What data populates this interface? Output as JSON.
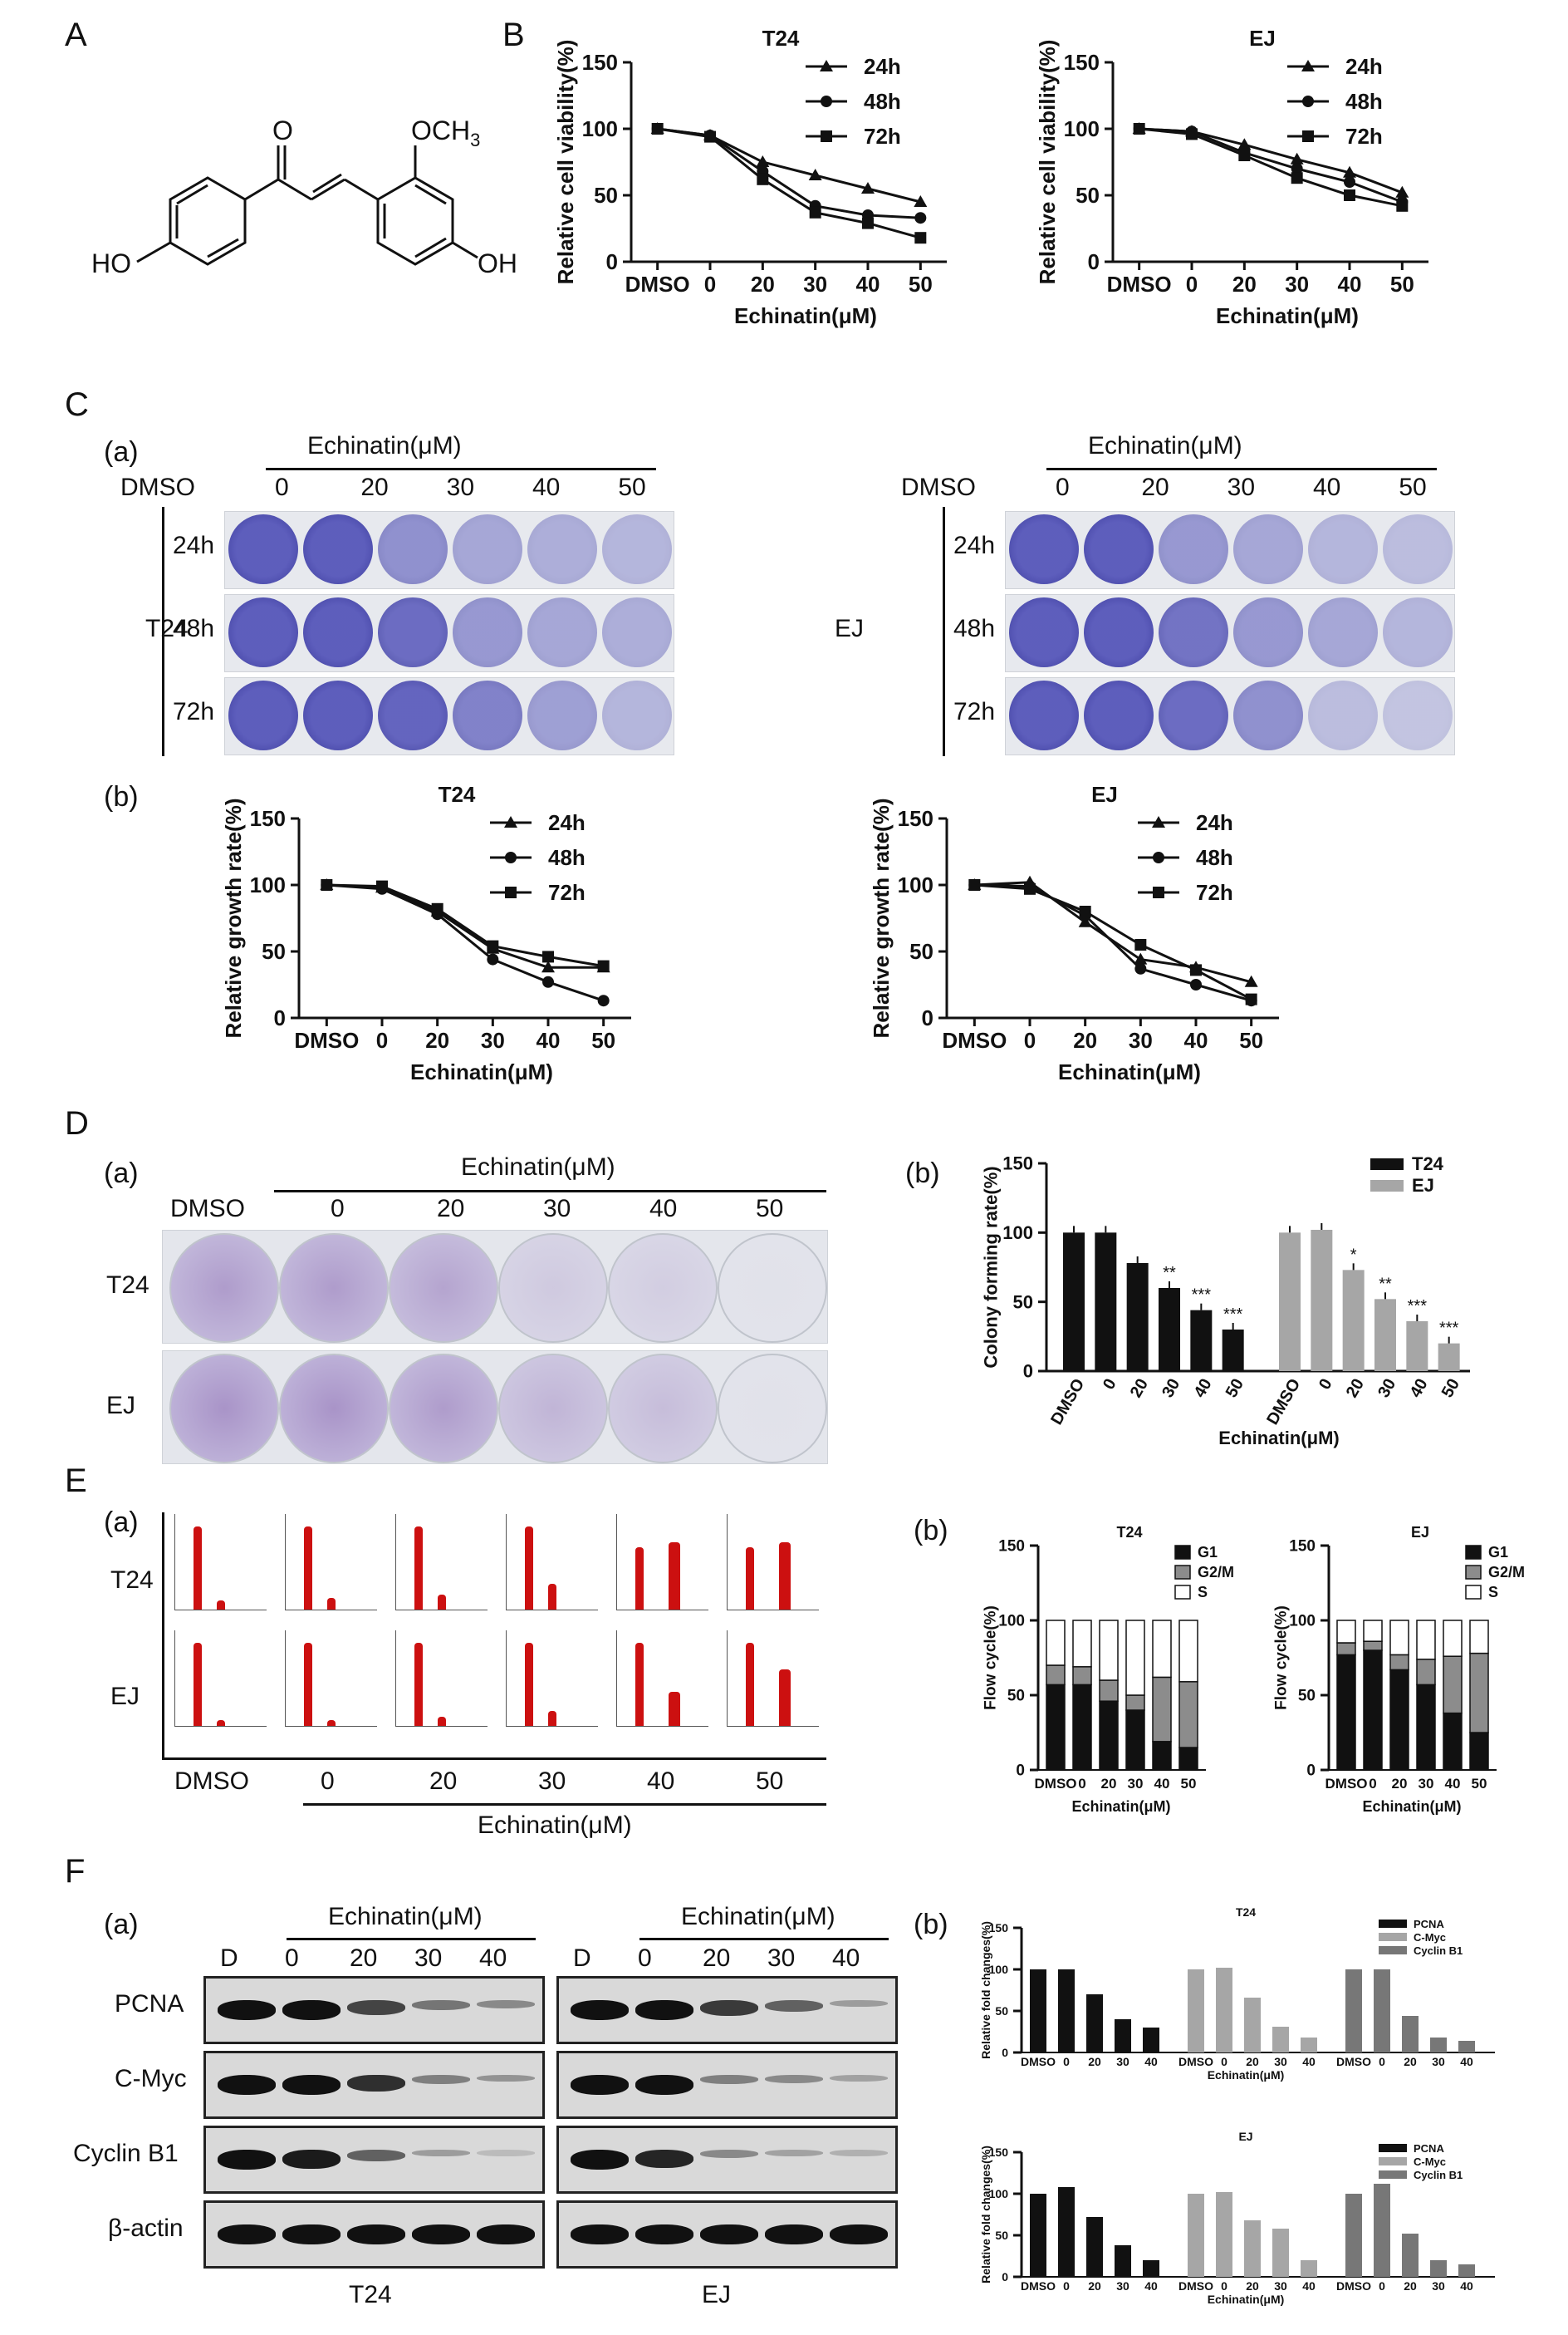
{
  "panel_labels": {
    "A": "A",
    "B": "B",
    "C": "C",
    "D": "D",
    "E": "E",
    "F": "F"
  },
  "sub_labels": {
    "a": "(a)",
    "b": "(b)"
  },
  "structure": {
    "o": "O",
    "ome": "OCH",
    "ome_sub": "3",
    "ho": "HO",
    "oh": "OH"
  },
  "common": {
    "echinatin_header": "Echinatin(μM)",
    "dmso": "DMSO",
    "doses": [
      "0",
      "20",
      "30",
      "40",
      "50"
    ],
    "times": [
      "24h",
      "48h",
      "72h"
    ],
    "cells": [
      "T24",
      "EJ"
    ]
  },
  "blot": {
    "header": "Echinatin(μM)",
    "lanes": [
      "D",
      "0",
      "20",
      "30",
      "40"
    ],
    "proteins": [
      "PCNA",
      "C-Myc",
      "Cyclin B1",
      "β-actin"
    ],
    "footers": [
      "T24",
      "EJ"
    ],
    "intensity": {
      "T24": [
        [
          1,
          1,
          0.75,
          0.5,
          0.4
        ],
        [
          1,
          1,
          0.85,
          0.45,
          0.35
        ],
        [
          1,
          0.95,
          0.6,
          0.3,
          0.12
        ],
        [
          1,
          1,
          1,
          1,
          1
        ]
      ],
      "EJ": [
        [
          1,
          1,
          0.8,
          0.6,
          0.3
        ],
        [
          1,
          1,
          0.45,
          0.4,
          0.28
        ],
        [
          1,
          0.9,
          0.4,
          0.28,
          0.2
        ],
        [
          1,
          1,
          1,
          1,
          1
        ]
      ]
    }
  },
  "chart_data": [
    {
      "type": "line",
      "title": "T24",
      "xlabel": "Echinatin(μM)",
      "ylabel": "Relative cell viability(%)",
      "categories": [
        "DMSO",
        "0",
        "20",
        "30",
        "40",
        "50"
      ],
      "ylim": [
        0,
        150
      ],
      "yticks": [
        "0",
        "50",
        "100",
        "150"
      ],
      "legend": "top-right",
      "series": [
        {
          "name": "24h",
          "marker": "triangle",
          "values": [
            100,
            95,
            75,
            65,
            55,
            45
          ]
        },
        {
          "name": "48h",
          "marker": "circle",
          "values": [
            100,
            95,
            68,
            42,
            35,
            33
          ]
        },
        {
          "name": "72h",
          "marker": "square",
          "values": [
            100,
            94,
            62,
            37,
            29,
            18
          ]
        }
      ]
    },
    {
      "type": "line",
      "title": "EJ",
      "xlabel": "Echinatin(μM)",
      "ylabel": "Relative cell viability(%)",
      "categories": [
        "DMSO",
        "0",
        "20",
        "30",
        "40",
        "50"
      ],
      "ylim": [
        0,
        150
      ],
      "yticks": [
        "0",
        "50",
        "100",
        "150"
      ],
      "legend": "top-right",
      "series": [
        {
          "name": "24h",
          "marker": "triangle",
          "values": [
            100,
            98,
            88,
            77,
            67,
            52
          ]
        },
        {
          "name": "48h",
          "marker": "circle",
          "values": [
            100,
            98,
            82,
            70,
            60,
            45
          ]
        },
        {
          "name": "72h",
          "marker": "square",
          "values": [
            100,
            96,
            80,
            63,
            50,
            42
          ]
        }
      ]
    },
    {
      "type": "line",
      "title": "T24",
      "xlabel": "Echinatin(μM)",
      "ylabel": "Relative growth rate(%)",
      "categories": [
        "DMSO",
        "0",
        "20",
        "30",
        "40",
        "50"
      ],
      "ylim": [
        0,
        150
      ],
      "yticks": [
        "0",
        "50",
        "100",
        "150"
      ],
      "legend": "top-right",
      "series": [
        {
          "name": "24h",
          "marker": "triangle",
          "values": [
            100,
            98,
            80,
            52,
            38,
            38
          ]
        },
        {
          "name": "48h",
          "marker": "circle",
          "values": [
            100,
            97,
            78,
            44,
            27,
            13
          ]
        },
        {
          "name": "72h",
          "marker": "square",
          "values": [
            100,
            99,
            82,
            54,
            46,
            39
          ]
        }
      ]
    },
    {
      "type": "line",
      "title": "EJ",
      "xlabel": "Echinatin(μM)",
      "ylabel": "Relative growth rate(%)",
      "categories": [
        "DMSO",
        "0",
        "20",
        "30",
        "40",
        "50"
      ],
      "ylim": [
        0,
        150
      ],
      "yticks": [
        "0",
        "50",
        "100",
        "150"
      ],
      "legend": "top-right",
      "series": [
        {
          "name": "24h",
          "marker": "triangle",
          "values": [
            100,
            102,
            72,
            44,
            38,
            27
          ]
        },
        {
          "name": "48h",
          "marker": "circle",
          "values": [
            100,
            99,
            77,
            37,
            25,
            13
          ]
        },
        {
          "name": "72h",
          "marker": "square",
          "values": [
            100,
            97,
            80,
            55,
            36,
            14
          ]
        }
      ]
    },
    {
      "type": "bar",
      "ylabel": "Colony forming rate(%)",
      "xlabel": "Echinatin(μM)",
      "categories": [
        "DMSO",
        "0",
        "20",
        "30",
        "40",
        "50"
      ],
      "ylim": [
        0,
        150
      ],
      "yticks": [
        "0",
        "50",
        "100",
        "150"
      ],
      "legend": "top-right",
      "series": [
        {
          "name": "T24",
          "color": "#111111",
          "values": [
            100,
            100,
            78,
            60,
            44,
            30
          ],
          "sig": [
            "",
            "",
            "",
            "**",
            "***",
            "***"
          ]
        },
        {
          "name": "EJ",
          "color": "#a6a6a6",
          "values": [
            100,
            102,
            73,
            52,
            36,
            20
          ],
          "sig": [
            "",
            "",
            "*",
            "**",
            "***",
            "***"
          ]
        }
      ]
    },
    {
      "type": "bar",
      "stacked": true,
      "title": "T24",
      "ylabel": "Flow cycle(%)",
      "xlabel": "Echinatin(μM)",
      "categories": [
        "DMSO",
        "0",
        "20",
        "30",
        "40",
        "50"
      ],
      "ylim": [
        0,
        150
      ],
      "yticks": [
        "0",
        "50",
        "100",
        "150"
      ],
      "legend": "top-right",
      "series": [
        {
          "name": "G1",
          "color": "#111111",
          "values": [
            57,
            57,
            46,
            40,
            19,
            15
          ]
        },
        {
          "name": "G2/M",
          "color": "#8c8c8c",
          "values": [
            13,
            12,
            14,
            10,
            43,
            44
          ]
        },
        {
          "name": "S",
          "color": "#ffffff",
          "values": [
            30,
            31,
            40,
            50,
            38,
            41
          ]
        }
      ]
    },
    {
      "type": "bar",
      "stacked": true,
      "title": "EJ",
      "ylabel": "Flow cycle(%)",
      "xlabel": "Echinatin(μM)",
      "categories": [
        "DMSO",
        "0",
        "20",
        "30",
        "40",
        "50"
      ],
      "ylim": [
        0,
        150
      ],
      "yticks": [
        "0",
        "50",
        "100",
        "150"
      ],
      "legend": "top-right",
      "series": [
        {
          "name": "G1",
          "color": "#111111",
          "values": [
            77,
            80,
            67,
            57,
            38,
            25
          ]
        },
        {
          "name": "G2/M",
          "color": "#8c8c8c",
          "values": [
            8,
            6,
            10,
            17,
            38,
            53
          ]
        },
        {
          "name": "S",
          "color": "#ffffff",
          "values": [
            15,
            14,
            23,
            26,
            24,
            22
          ]
        }
      ]
    },
    {
      "type": "bar",
      "title": "T24",
      "ylabel": "Relative fold changes(%)",
      "xlabel": "Echinatin(μM)",
      "categories": [
        "DMSO",
        "0",
        "20",
        "30",
        "40"
      ],
      "ylim": [
        0,
        150
      ],
      "yticks": [
        "0",
        "50",
        "100",
        "150"
      ],
      "legend": "top-right",
      "series": [
        {
          "name": "PCNA",
          "color": "#111111",
          "values": [
            100,
            100,
            70,
            40,
            30
          ]
        },
        {
          "name": "C-Myc",
          "color": "#a6a6a6",
          "values": [
            100,
            102,
            66,
            31,
            18
          ]
        },
        {
          "name": "Cyclin B1",
          "color": "#777777",
          "values": [
            100,
            100,
            44,
            18,
            14
          ]
        }
      ]
    },
    {
      "type": "bar",
      "title": "EJ",
      "ylabel": "Relative fold changes(%)",
      "xlabel": "Echinatin(μM)",
      "categories": [
        "DMSO",
        "0",
        "20",
        "30",
        "40"
      ],
      "ylim": [
        0,
        150
      ],
      "yticks": [
        "0",
        "50",
        "100",
        "150"
      ],
      "legend": "top-right",
      "series": [
        {
          "name": "PCNA",
          "color": "#111111",
          "values": [
            100,
            108,
            72,
            38,
            20
          ]
        },
        {
          "name": "C-Myc",
          "color": "#a6a6a6",
          "values": [
            100,
            102,
            68,
            58,
            20
          ]
        },
        {
          "name": "Cyclin B1",
          "color": "#777777",
          "values": [
            100,
            112,
            52,
            20,
            15
          ]
        }
      ]
    }
  ]
}
